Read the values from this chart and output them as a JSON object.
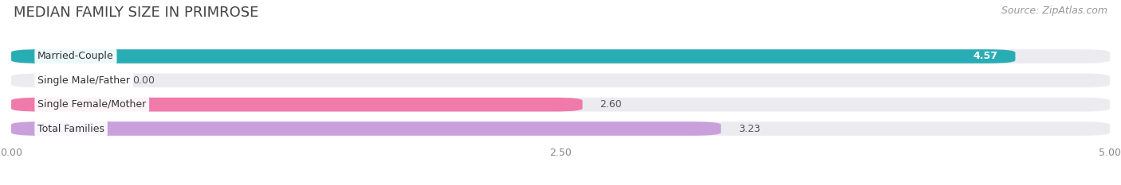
{
  "title": "MEDIAN FAMILY SIZE IN PRIMROSE",
  "source": "Source: ZipAtlas.com",
  "categories": [
    "Married-Couple",
    "Single Male/Father",
    "Single Female/Mother",
    "Total Families"
  ],
  "values": [
    4.57,
    0.0,
    2.6,
    3.23
  ],
  "bar_colors": [
    "#29adb5",
    "#a8bfe8",
    "#f07aaa",
    "#c9a0dc"
  ],
  "xlim": [
    0,
    5.0
  ],
  "xtick_labels": [
    "0.00",
    "2.50",
    "5.00"
  ],
  "xtick_values": [
    0.0,
    2.5,
    5.0
  ],
  "background_color": "#ffffff",
  "bar_background_color": "#ebebf0",
  "title_fontsize": 13,
  "source_fontsize": 9,
  "label_fontsize": 9,
  "value_fontsize": 9,
  "value_inside": [
    true,
    false,
    false,
    false
  ]
}
